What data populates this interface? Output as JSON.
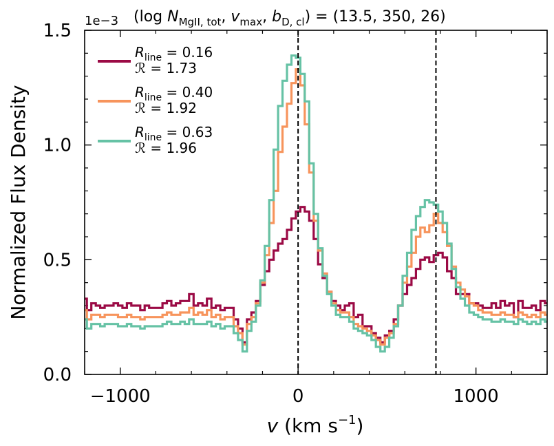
{
  "chart_data": {
    "type": "line",
    "drawstyle": "steps-mid",
    "title": "(log N_MgII,tot, v_max, b_D,cl) = (13.5, 350, 26)",
    "title_parts": {
      "open": "(log ",
      "n_sym": "N",
      "n_sub": "MgII, tot",
      "v_sym": "v",
      "v_sub": "max",
      "b_sym": "b",
      "b_sub": "D, cl",
      "close": ") = (13.5, 350, 26)"
    },
    "xlabel": "v (km s⁻¹)",
    "xlabel_parts": {
      "v": "v",
      "units": "(km s",
      "exp": "−1",
      "close": ")"
    },
    "ylabel": "Normalized Flux Density",
    "y_offset_label": "1e−3",
    "xlim": [
      -1200,
      1400
    ],
    "ylim": [
      0.0,
      1.5
    ],
    "xticks": [
      -1000,
      0,
      1000
    ],
    "xtick_labels": [
      "−1000",
      "0",
      "1000"
    ],
    "yticks": [
      0.0,
      0.5,
      1.0,
      1.5
    ],
    "ytick_labels": [
      "0.0",
      "0.5",
      "1.0",
      "1.5"
    ],
    "vlines": [
      0,
      775
    ],
    "legend_position": "upper-left",
    "series": [
      {
        "name": "R_line = 0.16",
        "line_value": "0.16",
        "ratio_value": "1.73",
        "color": "#9b0a45",
        "x": [
          -1200,
          -1175,
          -1150,
          -1125,
          -1100,
          -1075,
          -1050,
          -1025,
          -1000,
          -975,
          -950,
          -925,
          -900,
          -875,
          -850,
          -825,
          -800,
          -775,
          -750,
          -725,
          -700,
          -675,
          -650,
          -625,
          -600,
          -575,
          -550,
          -525,
          -500,
          -475,
          -450,
          -425,
          -400,
          -375,
          -350,
          -325,
          -300,
          -275,
          -250,
          -225,
          -200,
          -175,
          -150,
          -125,
          -100,
          -75,
          -50,
          -25,
          0,
          25,
          50,
          75,
          100,
          125,
          150,
          175,
          200,
          225,
          250,
          275,
          300,
          325,
          350,
          375,
          400,
          425,
          450,
          475,
          500,
          525,
          550,
          575,
          600,
          625,
          650,
          675,
          700,
          725,
          750,
          775,
          800,
          825,
          850,
          875,
          900,
          925,
          950,
          975,
          1000,
          1025,
          1050,
          1075,
          1100,
          1125,
          1150,
          1175,
          1200,
          1225,
          1250,
          1275,
          1300,
          1325,
          1350,
          1375,
          1400
        ],
        "y": [
          0.33,
          0.28,
          0.31,
          0.3,
          0.29,
          0.3,
          0.3,
          0.31,
          0.3,
          0.29,
          0.31,
          0.3,
          0.3,
          0.28,
          0.3,
          0.29,
          0.29,
          0.29,
          0.31,
          0.32,
          0.3,
          0.31,
          0.32,
          0.32,
          0.35,
          0.3,
          0.31,
          0.3,
          0.33,
          0.29,
          0.3,
          0.28,
          0.29,
          0.29,
          0.24,
          0.2,
          0.14,
          0.24,
          0.27,
          0.32,
          0.39,
          0.45,
          0.5,
          0.54,
          0.57,
          0.59,
          0.63,
          0.68,
          0.71,
          0.73,
          0.71,
          0.67,
          0.59,
          0.48,
          0.42,
          0.36,
          0.32,
          0.3,
          0.28,
          0.3,
          0.31,
          0.25,
          0.26,
          0.21,
          0.21,
          0.18,
          0.16,
          0.14,
          0.17,
          0.19,
          0.24,
          0.3,
          0.35,
          0.39,
          0.42,
          0.46,
          0.5,
          0.51,
          0.49,
          0.52,
          0.53,
          0.51,
          0.45,
          0.42,
          0.35,
          0.35,
          0.35,
          0.31,
          0.31,
          0.3,
          0.29,
          0.29,
          0.31,
          0.29,
          0.32,
          0.3,
          0.31,
          0.25,
          0.32,
          0.29,
          0.29,
          0.3,
          0.28,
          0.32,
          0.31
        ]
      },
      {
        "name": "R_line = 0.40",
        "line_value": "0.40",
        "ratio_value": "1.92",
        "color": "#f7945c",
        "x": [
          -1200,
          -1175,
          -1150,
          -1125,
          -1100,
          -1075,
          -1050,
          -1025,
          -1000,
          -975,
          -950,
          -925,
          -900,
          -875,
          -850,
          -825,
          -800,
          -775,
          -750,
          -725,
          -700,
          -675,
          -650,
          -625,
          -600,
          -575,
          -550,
          -525,
          -500,
          -475,
          -450,
          -425,
          -400,
          -375,
          -350,
          -325,
          -300,
          -275,
          -250,
          -225,
          -200,
          -175,
          -150,
          -125,
          -100,
          -75,
          -50,
          -25,
          0,
          25,
          50,
          75,
          100,
          125,
          150,
          175,
          200,
          225,
          250,
          275,
          300,
          325,
          350,
          375,
          400,
          425,
          450,
          475,
          500,
          525,
          550,
          575,
          600,
          625,
          650,
          675,
          700,
          725,
          750,
          775,
          800,
          825,
          850,
          875,
          900,
          925,
          950,
          975,
          1000,
          1025,
          1050,
          1075,
          1100,
          1125,
          1150,
          1175,
          1200,
          1225,
          1250,
          1275,
          1300,
          1325,
          1350,
          1375,
          1400
        ],
        "y": [
          0.28,
          0.24,
          0.26,
          0.26,
          0.25,
          0.26,
          0.26,
          0.26,
          0.25,
          0.25,
          0.26,
          0.25,
          0.25,
          0.24,
          0.25,
          0.25,
          0.25,
          0.25,
          0.26,
          0.27,
          0.26,
          0.26,
          0.27,
          0.27,
          0.29,
          0.26,
          0.27,
          0.26,
          0.28,
          0.25,
          0.26,
          0.24,
          0.25,
          0.25,
          0.21,
          0.18,
          0.13,
          0.22,
          0.25,
          0.31,
          0.4,
          0.52,
          0.66,
          0.8,
          0.97,
          1.08,
          1.18,
          1.27,
          1.33,
          1.26,
          1.09,
          0.88,
          0.67,
          0.54,
          0.44,
          0.36,
          0.31,
          0.28,
          0.27,
          0.27,
          0.25,
          0.22,
          0.21,
          0.2,
          0.19,
          0.17,
          0.15,
          0.13,
          0.16,
          0.18,
          0.22,
          0.3,
          0.4,
          0.47,
          0.53,
          0.6,
          0.64,
          0.62,
          0.65,
          0.7,
          0.66,
          0.62,
          0.56,
          0.47,
          0.4,
          0.37,
          0.34,
          0.31,
          0.3,
          0.28,
          0.27,
          0.27,
          0.26,
          0.26,
          0.27,
          0.26,
          0.26,
          0.25,
          0.27,
          0.26,
          0.25,
          0.26,
          0.25,
          0.27,
          0.26
        ]
      },
      {
        "name": "R_line = 0.63",
        "line_value": "0.63",
        "ratio_value": "1.96",
        "color": "#66c2a5",
        "x": [
          -1200,
          -1175,
          -1150,
          -1125,
          -1100,
          -1075,
          -1050,
          -1025,
          -1000,
          -975,
          -950,
          -925,
          -900,
          -875,
          -850,
          -825,
          -800,
          -775,
          -750,
          -725,
          -700,
          -675,
          -650,
          -625,
          -600,
          -575,
          -550,
          -525,
          -500,
          -475,
          -450,
          -425,
          -400,
          -375,
          -350,
          -325,
          -300,
          -275,
          -250,
          -225,
          -200,
          -175,
          -150,
          -125,
          -100,
          -75,
          -50,
          -25,
          0,
          25,
          50,
          75,
          100,
          125,
          150,
          175,
          200,
          225,
          250,
          275,
          300,
          325,
          350,
          375,
          400,
          425,
          450,
          475,
          500,
          525,
          550,
          575,
          600,
          625,
          650,
          675,
          700,
          725,
          750,
          775,
          800,
          825,
          850,
          875,
          900,
          925,
          950,
          975,
          1000,
          1025,
          1050,
          1075,
          1100,
          1125,
          1150,
          1175,
          1200,
          1225,
          1250,
          1275,
          1300,
          1325,
          1350,
          1375,
          1400
        ],
        "y": [
          0.24,
          0.2,
          0.22,
          0.22,
          0.21,
          0.22,
          0.22,
          0.22,
          0.21,
          0.21,
          0.22,
          0.21,
          0.21,
          0.2,
          0.21,
          0.21,
          0.21,
          0.21,
          0.22,
          0.23,
          0.22,
          0.22,
          0.23,
          0.22,
          0.24,
          0.22,
          0.22,
          0.22,
          0.23,
          0.21,
          0.22,
          0.2,
          0.21,
          0.21,
          0.18,
          0.15,
          0.1,
          0.19,
          0.23,
          0.3,
          0.41,
          0.56,
          0.76,
          0.98,
          1.17,
          1.28,
          1.35,
          1.39,
          1.38,
          1.31,
          1.19,
          0.92,
          0.7,
          0.55,
          0.43,
          0.35,
          0.3,
          0.26,
          0.25,
          0.25,
          0.23,
          0.2,
          0.19,
          0.18,
          0.17,
          0.15,
          0.12,
          0.1,
          0.12,
          0.16,
          0.21,
          0.3,
          0.43,
          0.53,
          0.63,
          0.69,
          0.73,
          0.76,
          0.75,
          0.74,
          0.71,
          0.66,
          0.57,
          0.46,
          0.38,
          0.33,
          0.3,
          0.27,
          0.26,
          0.25,
          0.24,
          0.24,
          0.23,
          0.23,
          0.24,
          0.23,
          0.23,
          0.22,
          0.24,
          0.23,
          0.22,
          0.23,
          0.22,
          0.24,
          0.23
        ]
      }
    ]
  }
}
